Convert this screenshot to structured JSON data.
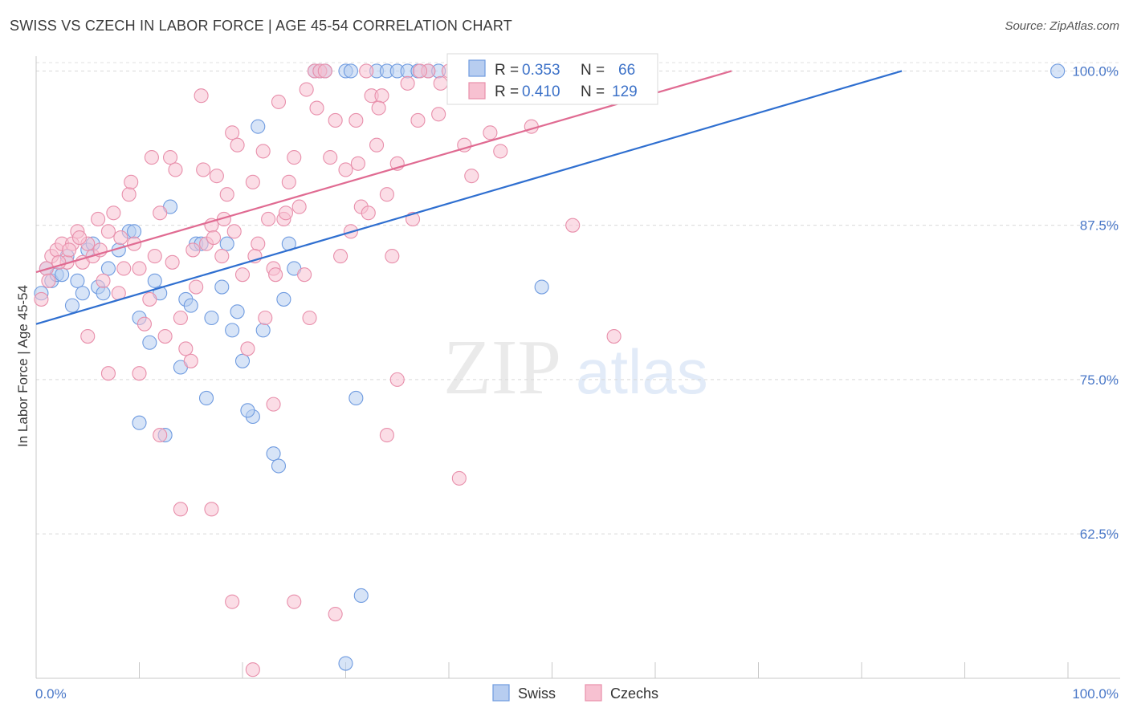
{
  "header": {
    "title": "SWISS VS CZECH IN LABOR FORCE | AGE 45-54 CORRELATION CHART",
    "source": "Source: ZipAtlas.com"
  },
  "watermark": {
    "zip": "ZIP",
    "atlas": "atlas"
  },
  "chart_data": {
    "type": "scatter",
    "xlabel": "",
    "ylabel": "In Labor Force | Age 45-54",
    "x_tick_labels": [
      "0.0%",
      "100.0%"
    ],
    "y_tick_labels": [
      "100.0%",
      "87.5%",
      "75.0%",
      "62.5%"
    ],
    "y_tick_values": [
      100.0,
      87.5,
      75.0,
      62.5
    ],
    "xlim": [
      0,
      100
    ],
    "ylim": [
      50.8,
      101.2
    ],
    "grid": "horizontal dashed",
    "legend_position": "top-center",
    "stats_legend": [
      {
        "r_label": "R =",
        "r_value": "0.353",
        "n_label": "N =",
        "n_value": "66"
      },
      {
        "r_label": "R =",
        "r_value": "0.410",
        "n_label": "N =",
        "n_value": "129"
      }
    ],
    "series": [
      {
        "name": "Swiss",
        "color": "#6f9be0",
        "fill": "#b7cdf0",
        "trend": {
          "x": [
            0,
            83.9
          ],
          "y": [
            79.5,
            100.0
          ]
        },
        "points": [
          [
            0.5,
            82.0
          ],
          [
            1,
            84.0
          ],
          [
            1.5,
            83.0
          ],
          [
            2,
            83.5
          ],
          [
            2.5,
            83.5
          ],
          [
            3,
            85.0
          ],
          [
            3.5,
            81.0
          ],
          [
            4,
            83.0
          ],
          [
            4.5,
            82.0
          ],
          [
            5,
            85.5
          ],
          [
            5.5,
            86.0
          ],
          [
            6,
            82.5
          ],
          [
            6.5,
            82.0
          ],
          [
            7,
            84.0
          ],
          [
            8,
            85.5
          ],
          [
            9,
            87.0
          ],
          [
            9.5,
            87.0
          ],
          [
            10,
            80.0
          ],
          [
            11,
            78.0
          ],
          [
            11.5,
            83.0
          ],
          [
            12,
            82.0
          ],
          [
            13,
            89.0
          ],
          [
            14,
            76.0
          ],
          [
            14.5,
            81.5
          ],
          [
            15,
            81.0
          ],
          [
            15.5,
            86.0
          ],
          [
            16,
            86.0
          ],
          [
            17,
            80.0
          ],
          [
            18,
            82.5
          ],
          [
            18.5,
            86.0
          ],
          [
            19,
            79.0
          ],
          [
            19.5,
            80.5
          ],
          [
            20,
            76.5
          ],
          [
            21,
            72.0
          ],
          [
            21.5,
            95.5
          ],
          [
            22,
            79.0
          ],
          [
            23,
            69.0
          ],
          [
            23.5,
            68.0
          ],
          [
            24,
            81.5
          ],
          [
            24.5,
            86.0
          ],
          [
            25,
            84.0
          ],
          [
            27,
            100
          ],
          [
            27.5,
            100
          ],
          [
            28,
            100
          ],
          [
            30,
            100
          ],
          [
            30.5,
            100
          ],
          [
            31,
            73.5
          ],
          [
            31.5,
            57.5
          ],
          [
            33,
            100
          ],
          [
            34,
            100
          ],
          [
            35,
            100
          ],
          [
            36,
            100
          ],
          [
            37,
            100
          ],
          [
            38,
            100
          ],
          [
            39,
            100
          ],
          [
            41,
            100
          ],
          [
            42,
            100
          ],
          [
            43,
            100
          ],
          [
            45,
            100
          ],
          [
            49,
            82.5
          ],
          [
            10,
            71.5
          ],
          [
            12.5,
            70.5
          ],
          [
            16.5,
            73.5
          ],
          [
            20.5,
            72.5
          ],
          [
            99,
            100
          ],
          [
            30,
            52.0
          ]
        ]
      },
      {
        "name": "Czechs",
        "color": "#e88fab",
        "fill": "#f7c1d1",
        "trend": {
          "x": [
            0,
            67.4
          ],
          "y": [
            83.7,
            100.0
          ]
        },
        "points": [
          [
            0.5,
            81.5
          ],
          [
            1,
            84.0
          ],
          [
            1.5,
            85.0
          ],
          [
            2,
            85.5
          ],
          [
            2.5,
            86.0
          ],
          [
            3,
            84.5
          ],
          [
            3.5,
            86.0
          ],
          [
            4,
            87.0
          ],
          [
            4.5,
            84.5
          ],
          [
            5,
            86.0
          ],
          [
            5.5,
            85.0
          ],
          [
            6,
            88.0
          ],
          [
            6.5,
            83.0
          ],
          [
            7,
            87.0
          ],
          [
            7.5,
            88.5
          ],
          [
            8,
            82.0
          ],
          [
            8.5,
            84.0
          ],
          [
            9,
            90.0
          ],
          [
            9.5,
            86.0
          ],
          [
            10,
            84.0
          ],
          [
            10.5,
            79.5
          ],
          [
            11,
            81.5
          ],
          [
            11.5,
            85.0
          ],
          [
            12,
            88.5
          ],
          [
            12.5,
            78.5
          ],
          [
            13,
            93.0
          ],
          [
            13.5,
            92.0
          ],
          [
            14,
            80.0
          ],
          [
            14.5,
            77.5
          ],
          [
            15,
            76.5
          ],
          [
            15.5,
            82.5
          ],
          [
            16,
            98.0
          ],
          [
            16.5,
            86.0
          ],
          [
            17,
            87.5
          ],
          [
            17.5,
            91.5
          ],
          [
            18,
            85.0
          ],
          [
            18.5,
            90.0
          ],
          [
            19,
            95.0
          ],
          [
            19.5,
            94.0
          ],
          [
            20,
            83.5
          ],
          [
            20.5,
            77.5
          ],
          [
            21,
            91.0
          ],
          [
            21.5,
            86.0
          ],
          [
            22,
            93.5
          ],
          [
            22.5,
            88.0
          ],
          [
            23,
            84.0
          ],
          [
            23.5,
            97.5
          ],
          [
            24,
            88.0
          ],
          [
            24.5,
            91.0
          ],
          [
            25,
            93.0
          ],
          [
            25.5,
            89.0
          ],
          [
            26,
            83.5
          ],
          [
            26.5,
            80.0
          ],
          [
            27,
            100
          ],
          [
            27.5,
            100
          ],
          [
            28,
            100
          ],
          [
            28.5,
            93.0
          ],
          [
            29,
            96.0
          ],
          [
            29.5,
            85.0
          ],
          [
            30,
            92.0
          ],
          [
            30.5,
            87.0
          ],
          [
            31,
            96.0
          ],
          [
            31.5,
            89.0
          ],
          [
            32,
            100
          ],
          [
            32.5,
            98.0
          ],
          [
            33,
            94.0
          ],
          [
            33.5,
            98.0
          ],
          [
            34,
            90.0
          ],
          [
            34.5,
            85.0
          ],
          [
            35,
            92.5
          ],
          [
            36,
            99.0
          ],
          [
            36.5,
            88.0
          ],
          [
            37,
            96.0
          ],
          [
            38,
            100
          ],
          [
            39,
            96.5
          ],
          [
            40,
            100
          ],
          [
            41,
            100
          ],
          [
            41.5,
            94.0
          ],
          [
            42,
            100
          ],
          [
            43,
            100
          ],
          [
            44,
            95.0
          ],
          [
            45,
            93.5
          ],
          [
            46,
            100
          ],
          [
            48,
            95.5
          ],
          [
            52,
            87.5
          ],
          [
            53,
            100
          ],
          [
            55,
            100
          ],
          [
            56,
            78.5
          ],
          [
            58,
            100
          ],
          [
            5,
            78.5
          ],
          [
            7,
            75.5
          ],
          [
            10,
            75.5
          ],
          [
            12,
            70.5
          ],
          [
            14,
            64.5
          ],
          [
            17,
            64.5
          ],
          [
            19,
            57.0
          ],
          [
            21,
            51.5
          ],
          [
            23,
            73.0
          ],
          [
            25,
            57.0
          ],
          [
            29,
            56.0
          ],
          [
            34,
            70.5
          ],
          [
            41,
            67.0
          ],
          [
            35,
            75.0
          ],
          [
            1.2,
            83.0
          ],
          [
            2.2,
            84.5
          ],
          [
            3.2,
            85.5
          ],
          [
            4.2,
            86.5
          ],
          [
            6.2,
            85.5
          ],
          [
            8.2,
            86.5
          ],
          [
            9.2,
            91.0
          ],
          [
            11.2,
            93.0
          ],
          [
            13.2,
            84.5
          ],
          [
            15.2,
            85.5
          ],
          [
            16.2,
            92.0
          ],
          [
            17.2,
            86.5
          ],
          [
            18.2,
            88.0
          ],
          [
            19.2,
            87.0
          ],
          [
            21.2,
            85.0
          ],
          [
            22.2,
            80.0
          ],
          [
            23.2,
            83.5
          ],
          [
            24.2,
            88.5
          ],
          [
            26.2,
            98.5
          ],
          [
            27.2,
            97.0
          ],
          [
            31.2,
            92.5
          ],
          [
            32.2,
            88.5
          ],
          [
            33.2,
            97.0
          ],
          [
            37.2,
            100
          ],
          [
            39.2,
            99.0
          ],
          [
            42.2,
            91.5
          ]
        ]
      }
    ]
  },
  "bottom_legend": [
    {
      "label": "Swiss",
      "color": "#b7cdf0",
      "border": "#6f9be0"
    },
    {
      "label": "Czechs",
      "color": "#f7c1d1",
      "border": "#e88fab"
    }
  ]
}
